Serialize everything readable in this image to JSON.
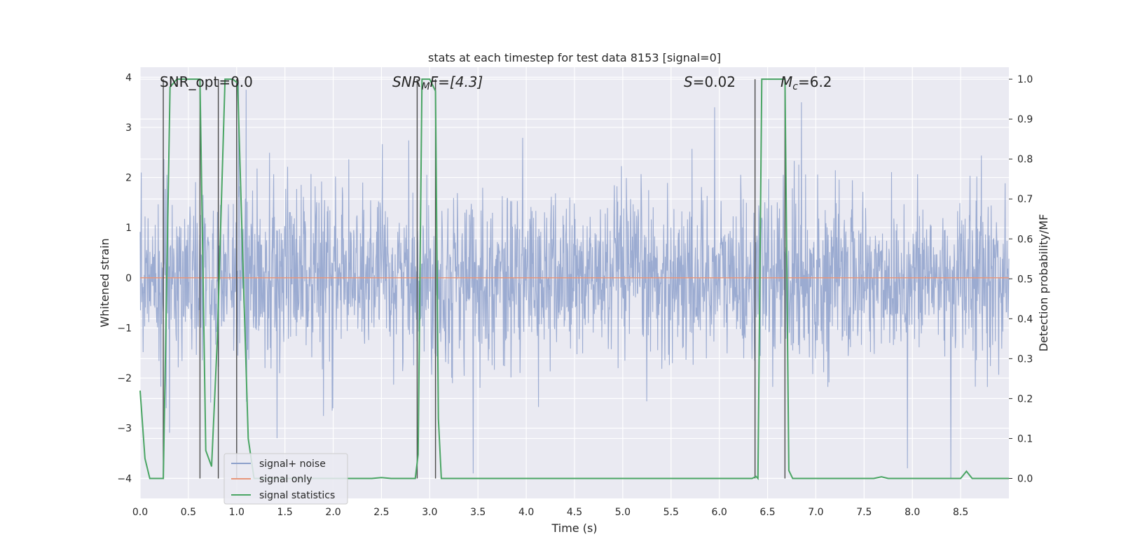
{
  "chart_data": {
    "type": "line",
    "title": "stats at each timestep for test data 8153 [signal=0]",
    "xlabel": "Time (s)",
    "ylabel": "Whitened strain",
    "ylabel_right": "Detection probability/MF",
    "xlim": [
      0.0,
      9.0
    ],
    "ylim": [
      -4.4,
      4.2
    ],
    "ylim_right": [
      -0.05,
      1.03
    ],
    "x_ticks": [
      0.0,
      0.5,
      1.0,
      1.5,
      2.0,
      2.5,
      3.0,
      3.5,
      4.0,
      4.5,
      5.0,
      5.5,
      6.0,
      6.5,
      7.0,
      7.5,
      8.0,
      8.5
    ],
    "x_tick_labels": [
      "0.0",
      "0.5",
      "1.0",
      "1.5",
      "2.0",
      "2.5",
      "3.0",
      "3.5",
      "4.0",
      "4.5",
      "5.0",
      "5.5",
      "6.0",
      "6.5",
      "7.0",
      "7.5",
      "8.0",
      "8.5"
    ],
    "y_ticks": [
      -4,
      -3,
      -2,
      -1,
      0,
      1,
      2,
      3,
      4
    ],
    "y_tick_labels": [
      "−4",
      "−3",
      "−2",
      "−1",
      "0",
      "1",
      "2",
      "3",
      "4"
    ],
    "y_ticks_right": [
      0.0,
      0.1,
      0.2,
      0.3,
      0.4,
      0.5,
      0.6,
      0.7,
      0.8,
      0.9,
      1.0
    ],
    "y_tick_labels_right": [
      "0.0",
      "0.1",
      "0.2",
      "0.3",
      "0.4",
      "0.5",
      "0.6",
      "0.7",
      "0.8",
      "0.9",
      "1.0"
    ],
    "grid": true,
    "legend_position": "bottom-left",
    "annotations": {
      "snr_opt": "SNR_opt=0.0",
      "snr_mf_sym": "SNR",
      "snr_mf_sub": "M",
      "snr_mf_rest": "F=[4.3]",
      "s_sym": "S",
      "s_val": "=0.02",
      "mc_sym": "M",
      "mc_sub": "c",
      "mc_val": "=6.2"
    },
    "series": [
      {
        "name": "signal+ noise",
        "color": "#8da0cb",
        "kind": "noise",
        "amplitude_std": 0.82,
        "n_samples": 2304,
        "approx_peaks": [
          {
            "x": 0.27,
            "y": -2.6
          },
          {
            "x": 1.02,
            "y": 3.9
          },
          {
            "x": 1.1,
            "y": 3.75
          },
          {
            "x": 1.42,
            "y": -3.2
          },
          {
            "x": 3.45,
            "y": -3.9
          },
          {
            "x": 5.95,
            "y": 3.4
          },
          {
            "x": 6.85,
            "y": 3.5
          },
          {
            "x": 7.95,
            "y": -3.8
          },
          {
            "x": 8.4,
            "y": -4.0
          }
        ]
      },
      {
        "name": "signal only",
        "color": "#e8967a",
        "x": [
          0.0,
          9.0
        ],
        "values": [
          0.0,
          0.0
        ]
      },
      {
        "name": "signal statistics",
        "color": "#4aa564",
        "axis": "right",
        "x": [
          0.0,
          0.05,
          0.1,
          0.24,
          0.31,
          0.38,
          0.5,
          0.62,
          0.68,
          0.74,
          0.8,
          0.88,
          0.96,
          1.01,
          1.06,
          1.12,
          1.18,
          2.4,
          2.5,
          2.6,
          2.85,
          2.88,
          2.92,
          2.95,
          3.0,
          3.06,
          3.09,
          3.12,
          3.2,
          6.34,
          6.38,
          6.4,
          6.44,
          6.68,
          6.72,
          6.76,
          7.6,
          7.68,
          7.75,
          8.5,
          8.56,
          8.62,
          9.0
        ],
        "values": [
          0.22,
          0.05,
          0.0,
          0.0,
          0.98,
          1.0,
          1.0,
          1.0,
          0.07,
          0.03,
          0.35,
          1.0,
          1.0,
          0.99,
          0.58,
          0.1,
          0.0,
          0.0,
          0.002,
          0.0,
          0.0,
          0.06,
          1.0,
          1.0,
          1.0,
          0.97,
          0.15,
          0.0,
          0.0,
          0.0,
          0.005,
          0.0,
          1.0,
          1.0,
          0.02,
          0.0,
          0.0,
          0.004,
          0.0,
          0.0,
          0.018,
          0.0,
          0.0
        ]
      }
    ],
    "vertical_markers_x": [
      0.24,
      0.62,
      0.81,
      1.0,
      2.87,
      3.06,
      6.37,
      6.68
    ]
  }
}
